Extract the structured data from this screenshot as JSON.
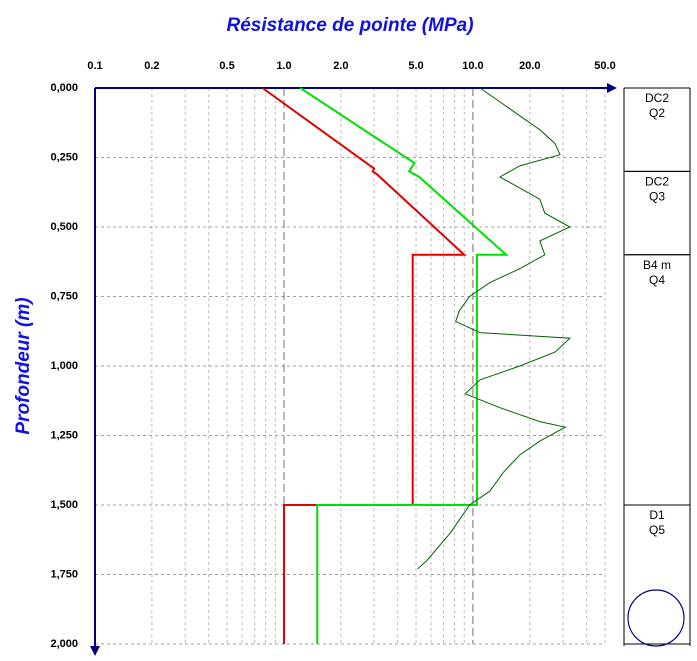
{
  "chart_data": {
    "type": "line",
    "title": "Résistance de pointe (MPa)",
    "y_label": "Profondeur (m)",
    "xscale": "log",
    "xlim": [
      0.1,
      50
    ],
    "xticks": [
      0.1,
      0.2,
      0.5,
      {
        "value": 1,
        "label": "1.0"
      },
      {
        "value": 2,
        "label": "2.0"
      },
      {
        "value": 5,
        "label": "5.0"
      },
      {
        "value": 10,
        "label": "10.0"
      },
      {
        "value": 20,
        "label": "20.0"
      },
      {
        "value": 50,
        "label": "50.0"
      }
    ],
    "xminorticks": [
      0.3,
      0.4,
      0.6,
      0.7,
      0.8,
      0.9,
      3,
      4,
      6,
      7,
      8,
      9,
      30,
      40
    ],
    "ylim": [
      0,
      2
    ],
    "yinverted": true,
    "yticks": [
      {
        "value": 0,
        "label": "0,000"
      },
      {
        "value": 0.25,
        "label": "0,250"
      },
      {
        "value": 0.5,
        "label": "0,500"
      },
      {
        "value": 0.75,
        "label": "0,750"
      },
      {
        "value": 1,
        "label": "1,000"
      },
      {
        "value": 1.25,
        "label": "1,250"
      },
      {
        "value": 1.5,
        "label": "1,500"
      },
      {
        "value": 1.75,
        "label": "1,750"
      },
      {
        "value": 2,
        "label": "2,000"
      }
    ],
    "grid": true,
    "series": [
      {
        "color": "#e00000",
        "x": [
          0.77,
          3.0,
          2.95,
          3.1,
          9.0,
          4.8,
          4.8,
          1.0,
          1.0
        ],
        "y": [
          0,
          0.29,
          0.3,
          0.31,
          0.6,
          0.6,
          1.5,
          1.5,
          2.0
        ]
      },
      {
        "color": "#00e000",
        "x": [
          1.22,
          4.9,
          4.6,
          5.2,
          15,
          10.5,
          10.5,
          1.5,
          1.5
        ],
        "y": [
          0,
          0.27,
          0.3,
          0.32,
          0.6,
          0.6,
          1.5,
          1.5,
          2.0
        ]
      },
      {
        "color": "#006400",
        "x": [
          10.9,
          13.9,
          17.7,
          22.6,
          27.2,
          28.9,
          17.7,
          13.9,
          17.7,
          22.6,
          24,
          32.6,
          22.6,
          24,
          17.7,
          12.3,
          9.6,
          8.5,
          8.1,
          10.9,
          32.6,
          27.2,
          17.7,
          10.9,
          9.1,
          13.9,
          22.6,
          30.8,
          22.6,
          17.7,
          14.6,
          12.3,
          9.6,
          7.6,
          5.7,
          5.1
        ],
        "y": [
          0,
          0.05,
          0.1,
          0.15,
          0.2,
          0.24,
          0.28,
          0.32,
          0.36,
          0.4,
          0.45,
          0.5,
          0.55,
          0.6,
          0.65,
          0.7,
          0.75,
          0.8,
          0.84,
          0.88,
          0.9,
          0.95,
          1.0,
          1.05,
          1.1,
          1.15,
          1.2,
          1.22,
          1.27,
          1.32,
          1.38,
          1.45,
          1.5,
          1.6,
          1.7,
          1.73
        ]
      }
    ],
    "layers": [
      {
        "lines": [
          "DC2",
          "Q2"
        ],
        "top": 0,
        "bottom": 0.3
      },
      {
        "lines": [
          "DC2",
          "Q3"
        ],
        "top": 0.3,
        "bottom": 0.6
      },
      {
        "lines": [
          "B4 m",
          "Q4"
        ],
        "top": 0.6,
        "bottom": 1.5
      },
      {
        "lines": [
          "D1",
          "Q5"
        ],
        "top": 1.5,
        "bottom": 2.0
      }
    ]
  }
}
